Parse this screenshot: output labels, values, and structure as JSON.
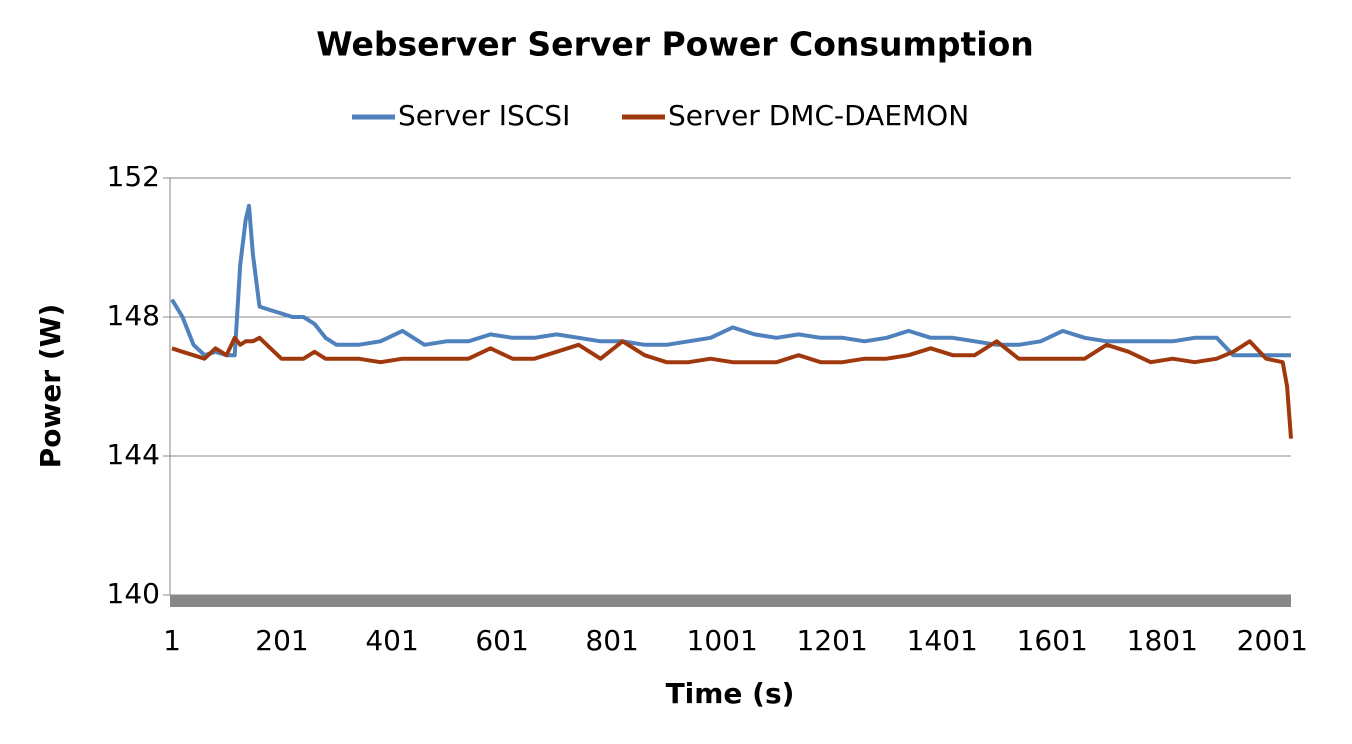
{
  "chart_data": {
    "type": "line",
    "title": "Webserver Server Power Consumption",
    "x_label": "Time (s)",
    "y_label": "Power (W)",
    "x": [
      1,
      20,
      40,
      60,
      80,
      100,
      115,
      125,
      135,
      141,
      148,
      160,
      180,
      200,
      220,
      240,
      260,
      280,
      300,
      340,
      380,
      420,
      460,
      500,
      540,
      580,
      620,
      660,
      700,
      740,
      780,
      820,
      860,
      900,
      940,
      980,
      1020,
      1060,
      1100,
      1140,
      1180,
      1220,
      1260,
      1300,
      1340,
      1380,
      1420,
      1460,
      1500,
      1540,
      1580,
      1620,
      1660,
      1700,
      1740,
      1780,
      1820,
      1860,
      1900,
      1930,
      1960,
      1990,
      2020,
      2028,
      2035
    ],
    "series": [
      {
        "name": "Server ISCSI",
        "color": "#4f81bd",
        "values": [
          148.5,
          148.0,
          147.2,
          146.9,
          147.0,
          146.9,
          146.9,
          149.5,
          150.8,
          151.2,
          149.8,
          148.3,
          148.2,
          148.1,
          148.0,
          148.0,
          147.8,
          147.4,
          147.2,
          147.2,
          147.3,
          147.6,
          147.2,
          147.3,
          147.3,
          147.5,
          147.4,
          147.4,
          147.5,
          147.4,
          147.3,
          147.3,
          147.2,
          147.2,
          147.3,
          147.4,
          147.7,
          147.5,
          147.4,
          147.5,
          147.4,
          147.4,
          147.3,
          147.4,
          147.6,
          147.4,
          147.4,
          147.3,
          147.2,
          147.2,
          147.3,
          147.6,
          147.4,
          147.3,
          147.3,
          147.3,
          147.3,
          147.4,
          147.4,
          146.9,
          146.9,
          146.9,
          146.9,
          146.9,
          146.9
        ]
      },
      {
        "name": "Server DMC-DAEMON",
        "color": "#a0380e",
        "values": [
          147.1,
          147.0,
          146.9,
          146.8,
          147.1,
          146.9,
          147.4,
          147.2,
          147.3,
          147.3,
          147.3,
          147.4,
          147.1,
          146.8,
          146.8,
          146.8,
          147.0,
          146.8,
          146.8,
          146.8,
          146.7,
          146.8,
          146.8,
          146.8,
          146.8,
          147.1,
          146.8,
          146.8,
          147.0,
          147.2,
          146.8,
          147.3,
          146.9,
          146.7,
          146.7,
          146.8,
          146.7,
          146.7,
          146.7,
          146.9,
          146.7,
          146.7,
          146.8,
          146.8,
          146.9,
          147.1,
          146.9,
          146.9,
          147.3,
          146.8,
          146.8,
          146.8,
          146.8,
          147.2,
          147.0,
          146.7,
          146.8,
          146.7,
          146.8,
          147.0,
          147.3,
          146.8,
          146.7,
          146.0,
          144.5
        ]
      }
    ],
    "xlim": [
      1,
      2035
    ],
    "xticks": [
      1,
      201,
      401,
      601,
      801,
      1001,
      1201,
      1401,
      1601,
      1801,
      2001
    ],
    "ylim": [
      140,
      152
    ],
    "yticks": [
      140,
      144,
      148,
      152
    ],
    "grid": true,
    "legend": "top"
  }
}
